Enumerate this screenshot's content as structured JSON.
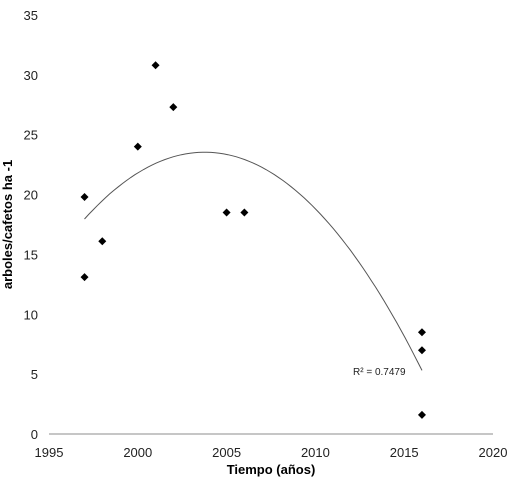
{
  "chart_data": {
    "type": "scatter",
    "title": "",
    "xlabel": "Tiempo (años)",
    "ylabel": "arboles/cafetos ha -1",
    "xlim": [
      1995,
      2020
    ],
    "ylim": [
      0,
      35
    ],
    "xticks": [
      "1995",
      "2000",
      "2005",
      "2010",
      "2015",
      "2020"
    ],
    "yticks": [
      "0",
      "5",
      "10",
      "15",
      "20",
      "25",
      "30",
      "35"
    ],
    "grid": false,
    "legend": "none",
    "marker": "diamond",
    "marker_color": "#000000",
    "trendline": {
      "kind": "polynomial-2",
      "color": "#555555",
      "annotation": "R² = 0.7479"
    },
    "points": [
      {
        "x": 1997,
        "y": 19.8
      },
      {
        "x": 1997,
        "y": 13.1
      },
      {
        "x": 1998,
        "y": 16.1
      },
      {
        "x": 2000,
        "y": 24.0
      },
      {
        "x": 2001,
        "y": 30.8
      },
      {
        "x": 2002,
        "y": 27.3
      },
      {
        "x": 2005,
        "y": 18.5
      },
      {
        "x": 2006,
        "y": 18.5
      },
      {
        "x": 2016,
        "y": 8.5
      },
      {
        "x": 2016,
        "y": 7.0
      },
      {
        "x": 2016,
        "y": 1.6
      }
    ]
  }
}
